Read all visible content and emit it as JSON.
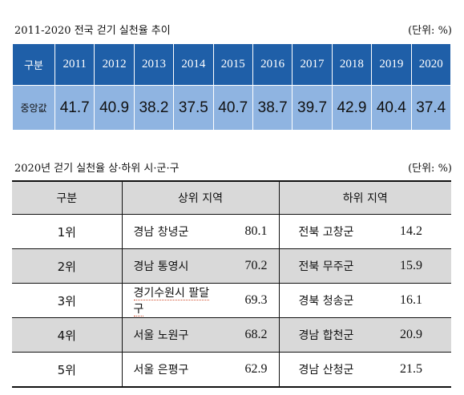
{
  "section1": {
    "title": "2011-2020 전국 걷기 실천율 추이",
    "unit": "(단위: %)",
    "row_header_label": "구분",
    "row_value_label": "중앙값",
    "years": [
      "2011",
      "2012",
      "2013",
      "2014",
      "2015",
      "2016",
      "2017",
      "2018",
      "2019",
      "2020"
    ],
    "values": [
      "41.7",
      "40.9",
      "38.2",
      "37.5",
      "40.7",
      "38.7",
      "39.7",
      "42.9",
      "40.4",
      "37.4"
    ],
    "colors": {
      "header_bg": "#1f5fa8",
      "value_bg": "#8fb4e1"
    }
  },
  "section2": {
    "title": "2020년 걷기 실천율 상·하위 시·군·구",
    "unit": "(단위: %)",
    "headers": {
      "rank": "구분",
      "top": "상위 지역",
      "bottom": "하위 지역"
    },
    "rows": [
      {
        "rank": "1위",
        "top_area": "경남 창녕군",
        "top_value": "80.1",
        "bottom_area": "전북 고창군",
        "bottom_value": "14.2"
      },
      {
        "rank": "2위",
        "top_area": "경남 통영시",
        "top_value": "70.2",
        "bottom_area": "전북 무주군",
        "bottom_value": "15.9"
      },
      {
        "rank": "3위",
        "top_area": "경기수원시 팔달구",
        "top_value": "69.3",
        "bottom_area": "경북 청송군",
        "bottom_value": "16.1"
      },
      {
        "rank": "4위",
        "top_area": "서울 노원구",
        "top_value": "68.2",
        "bottom_area": "경남 합천군",
        "bottom_value": "20.9"
      },
      {
        "rank": "5위",
        "top_area": "서울 은평구",
        "top_value": "62.9",
        "bottom_area": "경남 산청군",
        "bottom_value": "21.5"
      }
    ]
  }
}
